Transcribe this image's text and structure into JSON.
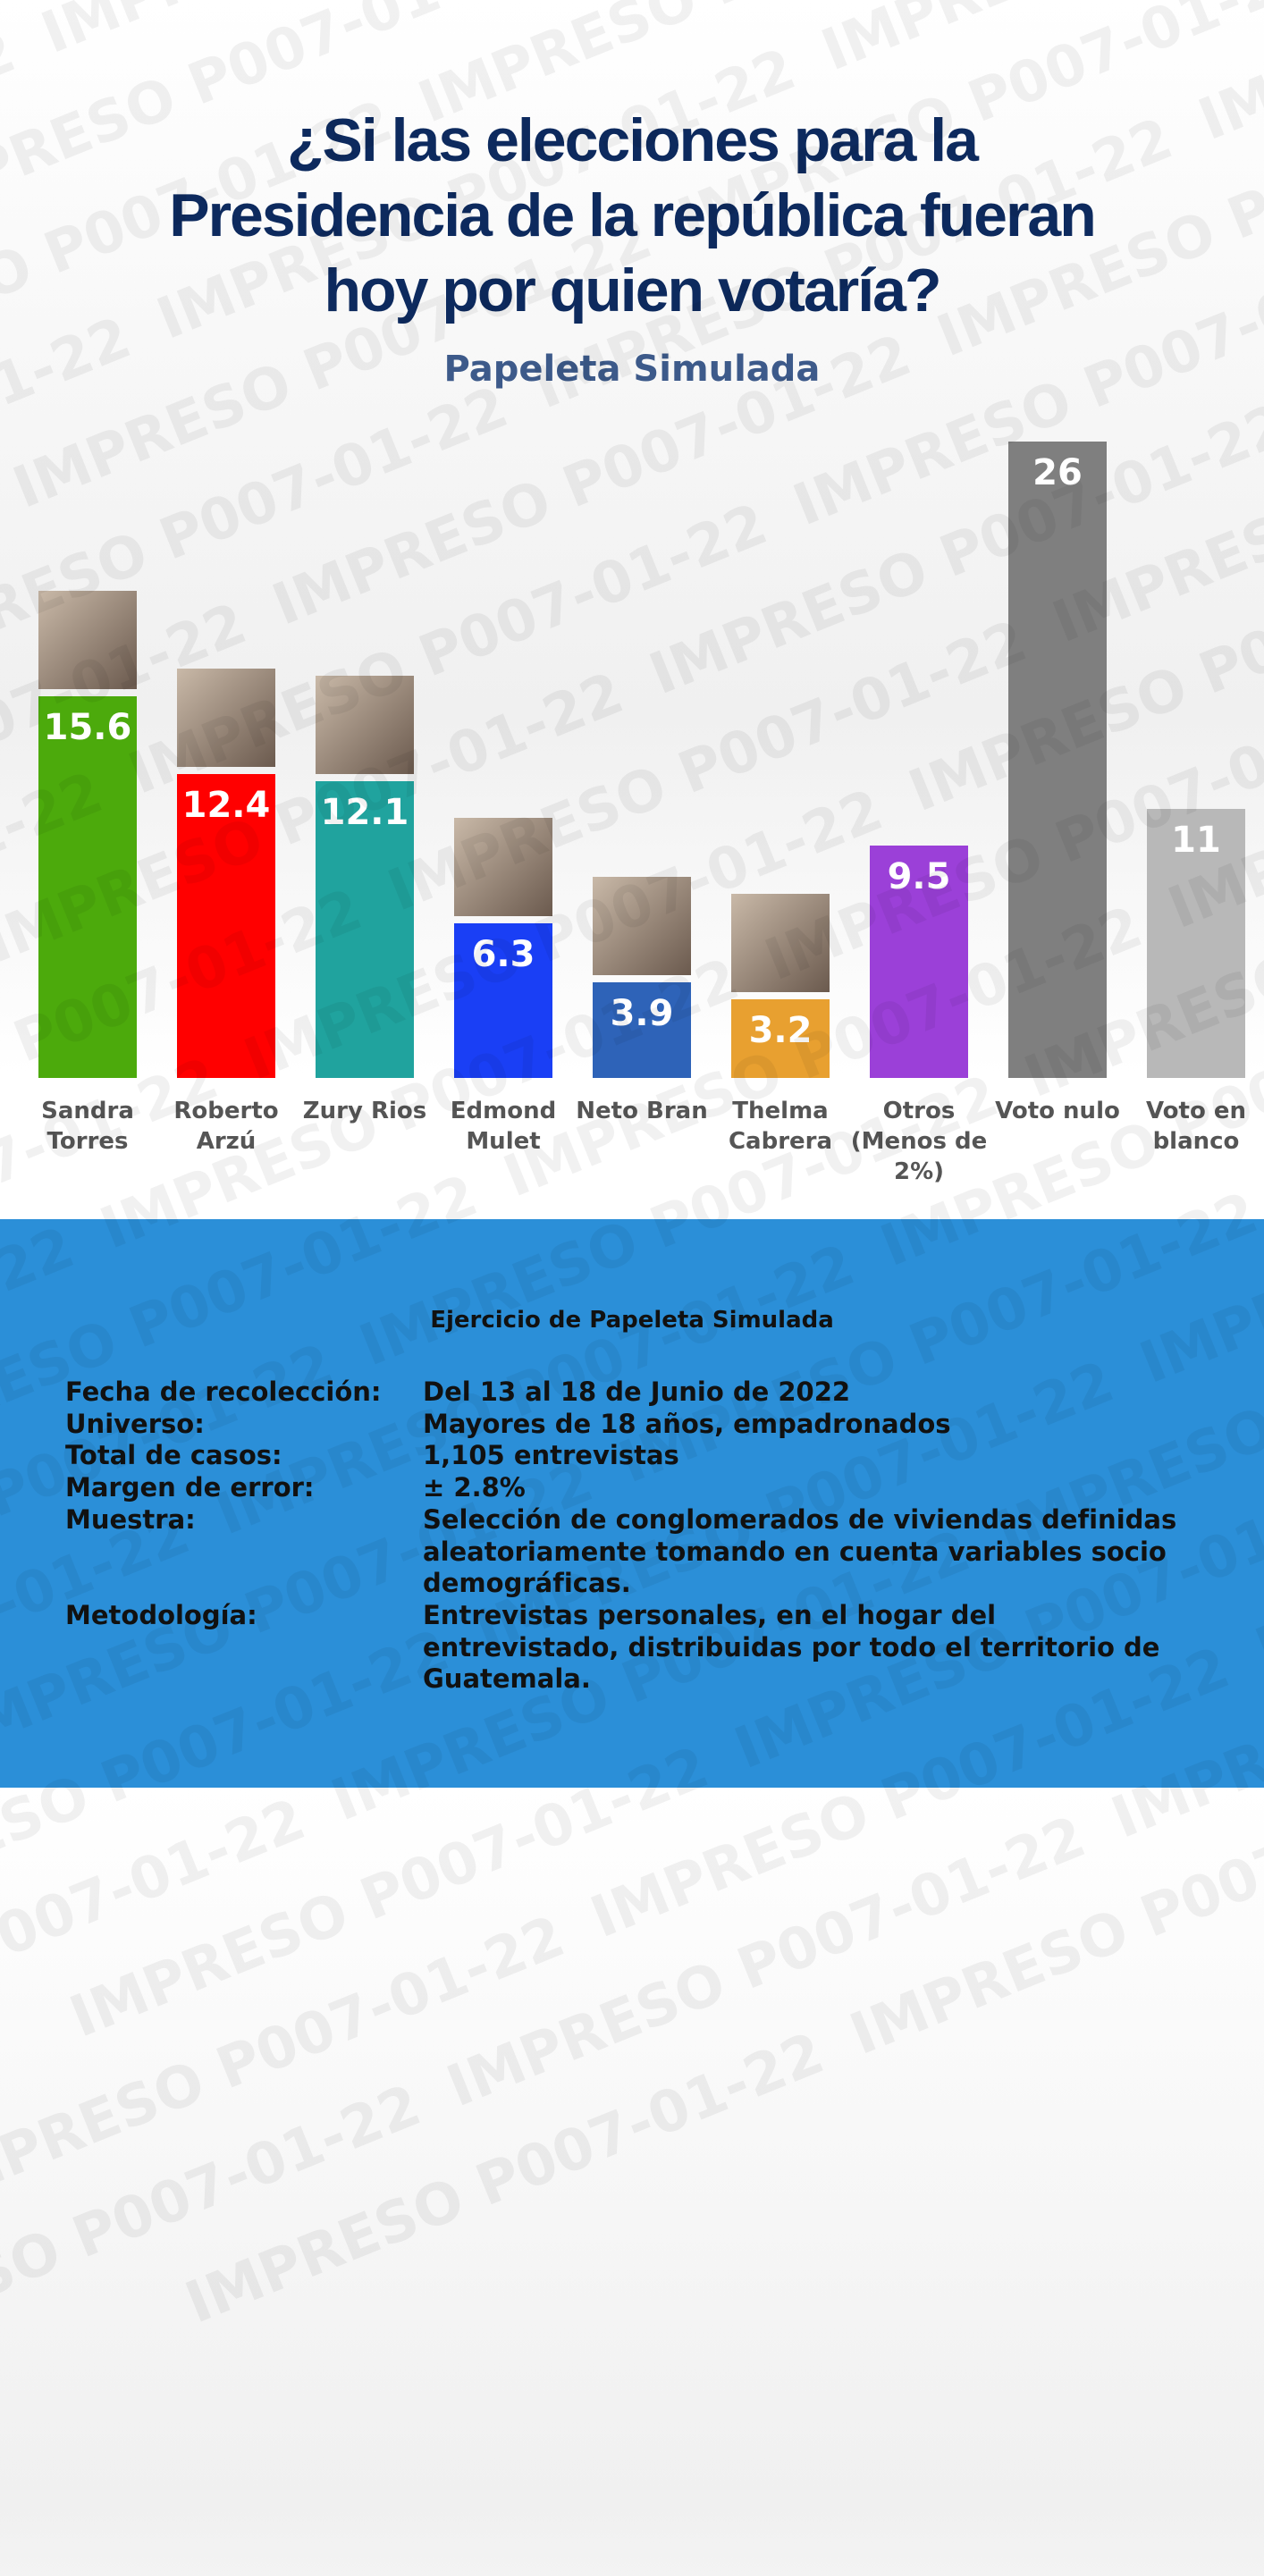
{
  "watermark": "IMPRESO P007-01-22",
  "chart_data": {
    "type": "bar",
    "title": "¿Si las elecciones para la Presidencia de la república fueran hoy por quien votaría?",
    "subtitle": "Papeleta Simulada",
    "categories": [
      "Sandra Torres",
      "Roberto Arzú",
      "Zury Rios",
      "Edmond Mulet",
      "Neto Bran",
      "Thelma Cabrera",
      "Otros (Menos de 2%)",
      "Voto nulo",
      "Voto en blanco"
    ],
    "values": [
      15.6,
      12.4,
      12.1,
      6.3,
      3.9,
      3.2,
      9.5,
      26,
      11
    ],
    "colors": [
      "#4caa0c",
      "#ff0000",
      "#20a39e",
      "#1a3ff5",
      "#2e63b8",
      "#e8a030",
      "#9b40d8",
      "#7f7f7f",
      "#b8b8b8"
    ]
  },
  "methodology": {
    "title": "Ejercicio de Papeleta Simulada",
    "rows": [
      [
        "Fecha de recolección:",
        "Del 13 al 18 de Junio de 2022"
      ],
      [
        "Universo:",
        "Mayores de 18 años, empadronados"
      ],
      [
        "Total de casos:",
        "1,105 entrevistas"
      ],
      [
        "Margen de error:",
        "± 2.8%"
      ],
      [
        "Muestra:",
        "Selección de conglomerados de viviendas definidas aleatoriamente tomando en cuenta variables socio demográficas."
      ],
      [
        "Metodología:",
        "Entrevistas personales, en el hogar del entrevistado, distribuidas por todo el territorio de Guatemala."
      ]
    ]
  }
}
